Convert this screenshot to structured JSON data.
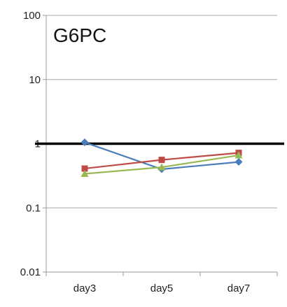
{
  "chart_data": {
    "type": "line",
    "title": "G6PC",
    "xlabel": "",
    "ylabel": "",
    "y_scale": "log",
    "ylim": [
      0.01,
      100
    ],
    "y_ticks": [
      "0.01",
      "0.1",
      "1",
      "10",
      "100"
    ],
    "grid": "horizontal",
    "reference_line": 1,
    "legend": "none",
    "categories": [
      "day3",
      "day5",
      "day7"
    ],
    "series": [
      {
        "color": "#4a7ebb",
        "marker": "diamond",
        "values": [
          1.05,
          0.4,
          0.52
        ]
      },
      {
        "color": "#be4b48",
        "marker": "square",
        "values": [
          0.41,
          0.56,
          0.72
        ]
      },
      {
        "color": "#98b954",
        "marker": "triangle",
        "values": [
          0.34,
          0.43,
          0.66
        ]
      }
    ]
  }
}
